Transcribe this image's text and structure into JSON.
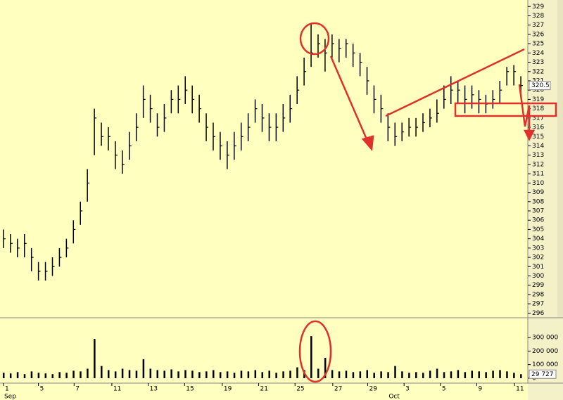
{
  "chart_data": [
    {
      "type": "ohlc",
      "x": [
        0,
        1,
        2,
        3,
        4,
        5,
        6,
        7,
        8,
        9,
        10,
        11,
        12,
        13,
        14,
        15,
        16,
        17,
        18,
        19,
        20,
        21,
        22,
        23,
        24,
        25,
        26,
        27,
        28,
        29,
        30,
        31,
        32,
        33,
        34,
        35,
        36,
        37,
        38,
        39,
        40,
        41,
        42,
        43,
        44,
        45,
        46,
        47,
        48,
        49,
        50,
        51,
        52,
        53,
        54,
        55,
        56,
        57,
        58,
        59,
        60,
        61,
        62,
        63,
        64,
        65,
        66,
        67,
        68,
        69,
        70,
        71,
        72,
        73,
        74
      ],
      "high": [
        305,
        304.5,
        304,
        304.5,
        303,
        301.5,
        301.5,
        302,
        303,
        304,
        306,
        308,
        311.5,
        318,
        316.5,
        316,
        314.5,
        313.5,
        315.5,
        317.5,
        320.5,
        319.5,
        317.5,
        318.5,
        320,
        320.5,
        321.5,
        320.5,
        319.5,
        317.5,
        316.5,
        315.5,
        314.5,
        315.5,
        316.5,
        317.5,
        319,
        318.5,
        317.5,
        317.5,
        318.5,
        319.5,
        321.5,
        323.5,
        327.2,
        326,
        325.5,
        326,
        325.5,
        325.5,
        325,
        324,
        322.5,
        320.5,
        319.5,
        317.5,
        316.5,
        316.5,
        317,
        317,
        317.5,
        318,
        319,
        320.5,
        321.5,
        321,
        320.5,
        320.5,
        320,
        319.5,
        320,
        321,
        322.5,
        322.7,
        321.5
      ],
      "low": [
        303,
        302.5,
        302,
        302,
        300.5,
        299.5,
        299.5,
        300,
        301,
        302,
        303.5,
        305.5,
        308,
        313,
        314,
        313.5,
        311.5,
        311,
        312.5,
        314.5,
        317,
        316.5,
        315,
        315.5,
        317.5,
        317.5,
        318.5,
        317.5,
        316.5,
        314.5,
        313.5,
        312.5,
        311.5,
        312.5,
        313.5,
        314.5,
        316.5,
        315.5,
        314.5,
        314.5,
        315.5,
        316.5,
        318.5,
        320.5,
        322.5,
        323.5,
        322,
        323.5,
        323,
        323.5,
        322.5,
        321.5,
        319.5,
        317.5,
        316.5,
        314.5,
        314,
        314.5,
        315,
        315,
        315.5,
        316,
        316.5,
        318,
        318.5,
        318.5,
        317.5,
        318,
        317.5,
        317.5,
        318,
        318.5,
        320.5,
        320.5,
        319.5
      ],
      "close": [
        304,
        303.5,
        303,
        303.5,
        302,
        300.5,
        300.5,
        301,
        302,
        303,
        305,
        307,
        310,
        317,
        315,
        315,
        313,
        312,
        314,
        316,
        319,
        318,
        316,
        317,
        319,
        319,
        320,
        319,
        318,
        316,
        315,
        314,
        313,
        314,
        315,
        316,
        318,
        317,
        316,
        316,
        317,
        318,
        320,
        322,
        324,
        325,
        324,
        325,
        324.5,
        325,
        324,
        323,
        321,
        319,
        318,
        316,
        315,
        315.5,
        316,
        316,
        316.5,
        317,
        317.5,
        319,
        320,
        320,
        319,
        319.5,
        319,
        318.5,
        319,
        320,
        322,
        322,
        320.5
      ],
      "color": "#000000",
      "xlim": [
        -0.5,
        75
      ],
      "ylim": [
        295.5,
        329.7
      ],
      "yticks": [
        296,
        297,
        298,
        299,
        300,
        301,
        302,
        303,
        304,
        305,
        306,
        307,
        308,
        309,
        310,
        311,
        312,
        313,
        314,
        315,
        316,
        317,
        318,
        319,
        320,
        321,
        322,
        323,
        324,
        325,
        326,
        327,
        328,
        329
      ],
      "price_marker": 320.5
    },
    {
      "type": "bar",
      "x": [
        0,
        1,
        2,
        3,
        4,
        5,
        6,
        7,
        8,
        9,
        10,
        11,
        12,
        13,
        14,
        15,
        16,
        17,
        18,
        19,
        20,
        21,
        22,
        23,
        24,
        25,
        26,
        27,
        28,
        29,
        30,
        31,
        32,
        33,
        34,
        35,
        36,
        37,
        38,
        39,
        40,
        41,
        42,
        43,
        44,
        45,
        46,
        47,
        48,
        49,
        50,
        51,
        52,
        53,
        54,
        55,
        56,
        57,
        58,
        59,
        60,
        61,
        62,
        63,
        64,
        65,
        66,
        67,
        68,
        69,
        70,
        71,
        72,
        73,
        74
      ],
      "values": [
        40000,
        35000,
        45000,
        30000,
        50000,
        40000,
        35000,
        30000,
        45000,
        40000,
        55000,
        50000,
        70000,
        290000,
        90000,
        60000,
        50000,
        70000,
        60000,
        55000,
        140000,
        70000,
        60000,
        55000,
        65000,
        50000,
        60000,
        55000,
        45000,
        50000,
        60000,
        45000,
        50000,
        40000,
        55000,
        50000,
        60000,
        45000,
        55000,
        40000,
        50000,
        55000,
        80000,
        60000,
        310000,
        70000,
        150000,
        60000,
        50000,
        55000,
        45000,
        50000,
        60000,
        40000,
        50000,
        45000,
        90000,
        50000,
        40000,
        45000,
        40000,
        55000,
        70000,
        45000,
        50000,
        60000,
        45000,
        55000,
        50000,
        45000,
        55000,
        60000,
        50000,
        40000,
        29727
      ],
      "color": "#000000",
      "xlim": [
        -0.5,
        75
      ],
      "ylim": [
        0,
        430000
      ],
      "yticks": [
        0,
        {
          "value": 100000,
          "label": "100 000"
        },
        {
          "value": 200000,
          "label": "200 000"
        },
        {
          "value": 300000,
          "label": "300 000"
        }
      ],
      "xticks": [
        {
          "value": 0,
          "label": "1"
        },
        {
          "value": 5,
          "label": "5"
        },
        {
          "value": 10.1,
          "label": "7"
        },
        {
          "value": 15.5,
          "label": "11"
        },
        {
          "value": 20.7,
          "label": "13"
        },
        {
          "value": 25.9,
          "label": "15"
        },
        {
          "value": 31.3,
          "label": "19"
        },
        {
          "value": 36.5,
          "label": "21"
        },
        {
          "value": 41.7,
          "label": "25"
        },
        {
          "value": 47.1,
          "label": "27"
        },
        {
          "value": 52.1,
          "label": "29"
        },
        {
          "value": 57.3,
          "label": "3"
        },
        {
          "value": 62.5,
          "label": "5"
        },
        {
          "value": 67.7,
          "label": "9"
        },
        {
          "value": 73.1,
          "label": "11"
        }
      ],
      "months": [
        "Sep",
        "Oct"
      ],
      "month_x": [
        0,
        55
      ],
      "volume_marker": {
        "value": 29727,
        "label": "29 727"
      }
    }
  ]
}
